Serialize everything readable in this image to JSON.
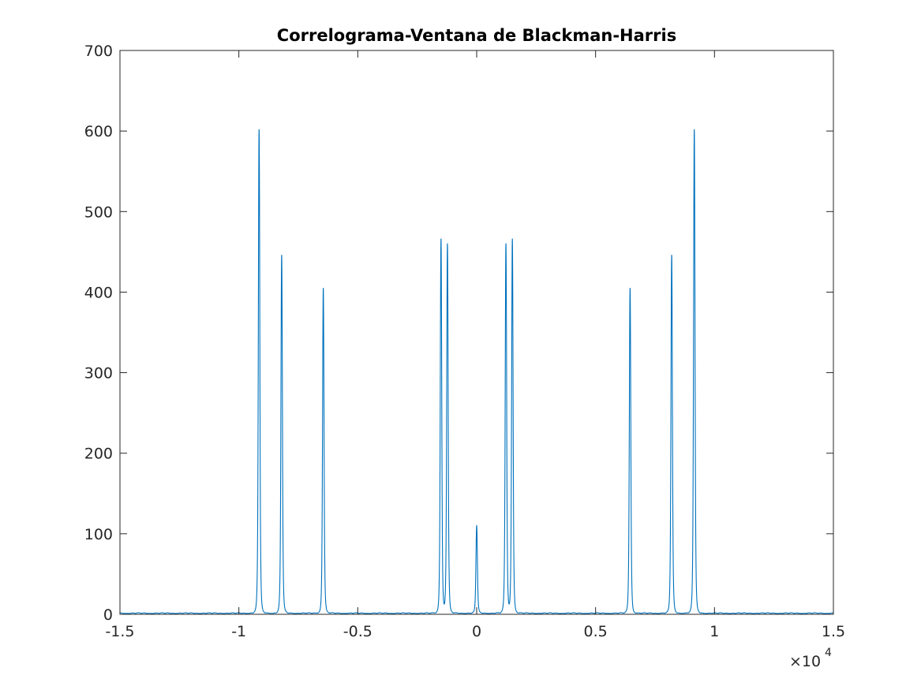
{
  "chart_data": {
    "type": "line",
    "title": "Correlograma-Ventana de Blackman-Harris",
    "xlabel": "",
    "ylabel": "",
    "xlim": [
      -15000,
      15000
    ],
    "ylim": [
      0,
      700
    ],
    "x_ticks": [
      -15000,
      -10000,
      -5000,
      0,
      5000,
      10000,
      15000
    ],
    "x_tick_labels": [
      "-1.5",
      "-1",
      "-0.5",
      "0",
      "0.5",
      "1",
      "1.5"
    ],
    "x_multiplier": {
      "base": "×10",
      "exponent": "4"
    },
    "y_ticks": [
      0,
      100,
      200,
      300,
      400,
      500,
      600,
      700
    ],
    "y_tick_labels": [
      "0",
      "100",
      "200",
      "300",
      "400",
      "500",
      "600",
      "700"
    ],
    "grid": false,
    "box": true,
    "series": [
      {
        "color": "#0072bd",
        "peaks": [
          {
            "x": -9150,
            "y": 601
          },
          {
            "x": -8200,
            "y": 445
          },
          {
            "x": -6450,
            "y": 404
          },
          {
            "x": -1500,
            "y": 465
          },
          {
            "x": -1230,
            "y": 459
          },
          {
            "x": 0,
            "y": 109
          },
          {
            "x": 1230,
            "y": 459
          },
          {
            "x": 1500,
            "y": 465
          },
          {
            "x": 6450,
            "y": 404
          },
          {
            "x": 8200,
            "y": 445
          },
          {
            "x": 9150,
            "y": 601
          }
        ],
        "noise_floor": 2
      }
    ]
  }
}
